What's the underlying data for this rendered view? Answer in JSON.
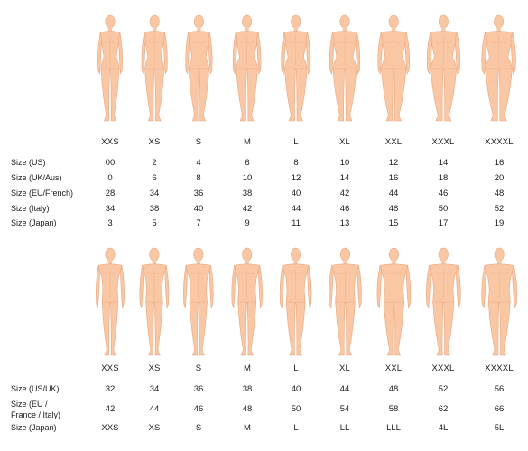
{
  "women": {
    "sizes": [
      "XXS",
      "XS",
      "S",
      "M",
      "L",
      "XL",
      "XXL",
      "XXXL",
      "XXXXL"
    ],
    "rows": [
      {
        "label": "Size (US)",
        "values": [
          "00",
          "2",
          "4",
          "6",
          "8",
          "10",
          "12",
          "14",
          "16"
        ]
      },
      {
        "label": "Size (UK/Aus)",
        "values": [
          "0",
          "6",
          "8",
          "10",
          "12",
          "14",
          "16",
          "18",
          "20"
        ]
      },
      {
        "label": "Size (EU/French)",
        "values": [
          "28",
          "34",
          "36",
          "38",
          "40",
          "42",
          "44",
          "46",
          "48"
        ]
      },
      {
        "label": "Size (Italy)",
        "values": [
          "34",
          "38",
          "40",
          "42",
          "44",
          "46",
          "48",
          "50",
          "52"
        ]
      },
      {
        "label": "Size (Japan)",
        "values": [
          "3",
          "5",
          "7",
          "9",
          "11",
          "13",
          "15",
          "17",
          "19"
        ]
      }
    ]
  },
  "men": {
    "sizes": [
      "XXS",
      "XS",
      "S",
      "M",
      "L",
      "XL",
      "XXL",
      "XXXL",
      "XXXXL"
    ],
    "rows": [
      {
        "label": "Size (US/UK)",
        "values": [
          "32",
          "34",
          "36",
          "38",
          "40",
          "44",
          "48",
          "52",
          "56"
        ]
      },
      {
        "label": "Size (EU / France / Italy)",
        "label_lines": [
          "Size (EU /",
          "France / Italy)"
        ],
        "values": [
          "42",
          "44",
          "46",
          "48",
          "50",
          "54",
          "58",
          "62",
          "66"
        ]
      },
      {
        "label": "Size (Japan)",
        "values": [
          "XXS",
          "XS",
          "S",
          "M",
          "L",
          "LL",
          "LLL",
          "4L",
          "5L"
        ]
      }
    ]
  },
  "colors": {
    "skin_fill": "#f9c7a3",
    "skin_line": "#e8a882",
    "text": "#1a1a1a",
    "background": "#ffffff"
  }
}
